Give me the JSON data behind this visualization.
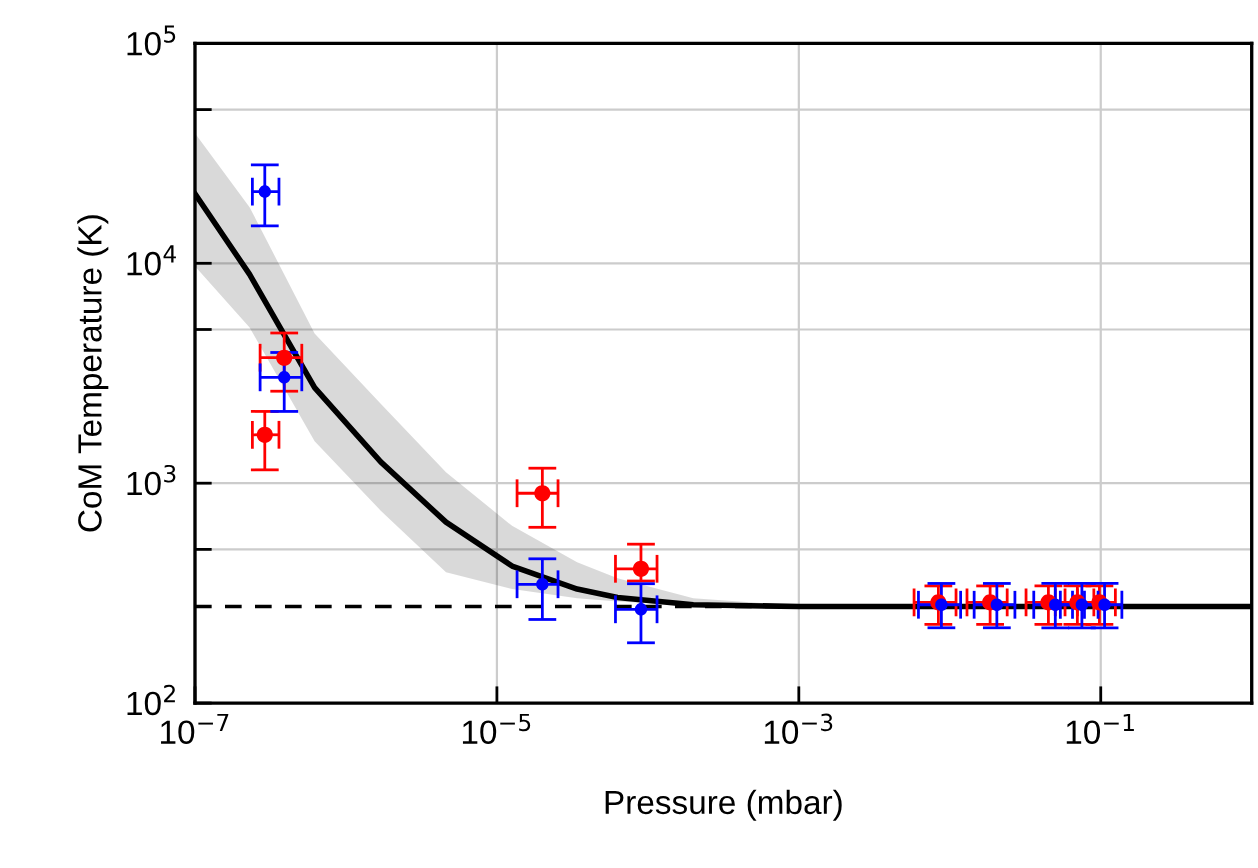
{
  "chart_data": {
    "type": "scatter",
    "xlabel": "Pressure (mbar)",
    "ylabel": "CoM Temperature (K)",
    "log": "xy",
    "grid": true,
    "marker": "circle",
    "xlim": [
      1e-07,
      1
    ],
    "ylim": [
      100,
      100000
    ],
    "xticks": [
      {
        "value": 1e-07,
        "label": "10$^{−7}$"
      },
      {
        "value": 1e-05,
        "label": "10$^{−5}$"
      },
      {
        "value": 0.001,
        "label": "10$^{−3}$"
      },
      {
        "value": 0.1,
        "label": "10$^{−1}$"
      }
    ],
    "yticks": [
      {
        "value": 100,
        "label": "10$^{2}$"
      },
      {
        "value": 500,
        "label": null
      },
      {
        "value": 1000,
        "label": "10$^{3}$"
      },
      {
        "value": 5000,
        "label": null
      },
      {
        "value": 10000,
        "label": "10$^{4}$"
      },
      {
        "value": 50000,
        "label": null
      },
      {
        "value": 100000,
        "label": "10$^{5}$"
      }
    ],
    "ref_lines": [
      {
        "axis": "y",
        "value": 275,
        "color": "#000000",
        "line_style": "dashed"
      }
    ],
    "series": [
      {
        "type": "line",
        "color": "#000000",
        "line_style": "solid",
        "marker": "none",
        "x": [
          1e-07,
          2.3e-07,
          6.2e-07,
          1.7e-06,
          4.6e-06,
          1.26e-05,
          3.4e-05,
          6.3e-05,
          0.0002,
          0.001,
          1
        ],
        "values": [
          20700,
          8900,
          2720,
          1250,
          665,
          420,
          330,
          302,
          280,
          275,
          275
        ],
        "upper": [
          39000,
          18000,
          4800,
          2300,
          1120,
          640,
          437,
          370,
          300,
          277,
          275
        ],
        "lower": [
          9700,
          5100,
          1550,
          750,
          394,
          330,
          300,
          290,
          278,
          274,
          275
        ]
      },
      {
        "color": "#ff0000",
        "x": [
          2.9e-07,
          3.9e-07,
          2e-05,
          9e-05,
          0.0084,
          0.0185,
          0.045,
          0.07,
          0.098
        ],
        "values": [
          1660,
          3720,
          900,
          408,
          287,
          287,
          287,
          287,
          287
        ],
        "errors": [
          [
            1150,
            2120
          ],
          [
            2620,
            4820
          ],
          [
            630,
            1170
          ],
          [
            359,
            528
          ],
          [
            228,
            341
          ],
          [
            228,
            341
          ],
          [
            228,
            341
          ],
          [
            228,
            341
          ],
          [
            228,
            341
          ]
        ],
        "xerrors": [
          [
            2.4e-07,
            3.6e-07
          ],
          [
            2.7e-07,
            5.1e-07
          ],
          [
            1.36e-05,
            2.54e-05
          ],
          [
            6.1e-05,
            0.000115
          ],
          [
            0.0058,
            0.011
          ],
          [
            0.013,
            0.024
          ],
          [
            0.032,
            0.058
          ],
          [
            0.05,
            0.09
          ],
          [
            0.07,
            0.125
          ]
        ]
      },
      {
        "color": "#0000ff",
        "x": [
          2.9e-07,
          3.9e-07,
          2e-05,
          9e-05,
          0.0088,
          0.0205,
          0.05,
          0.075,
          0.106
        ],
        "values": [
          21200,
          3030,
          347,
          267,
          280,
          280,
          280,
          280,
          280
        ],
        "errors": [
          [
            14800,
            28000
          ],
          [
            2120,
            3930
          ],
          [
            240,
            453
          ],
          [
            188,
            349
          ],
          [
            220,
            350
          ],
          [
            220,
            350
          ],
          [
            220,
            350
          ],
          [
            220,
            350
          ],
          [
            220,
            350
          ]
        ],
        "xerrors": [
          [
            2.4e-07,
            3.6e-07
          ],
          [
            2.7e-07,
            5.1e-07
          ],
          [
            1.36e-05,
            2.54e-05
          ],
          [
            6.1e-05,
            0.000115
          ],
          [
            0.0062,
            0.0118
          ],
          [
            0.0145,
            0.027
          ],
          [
            0.036,
            0.065
          ],
          [
            0.054,
            0.096
          ],
          [
            0.078,
            0.138
          ]
        ]
      }
    ]
  }
}
